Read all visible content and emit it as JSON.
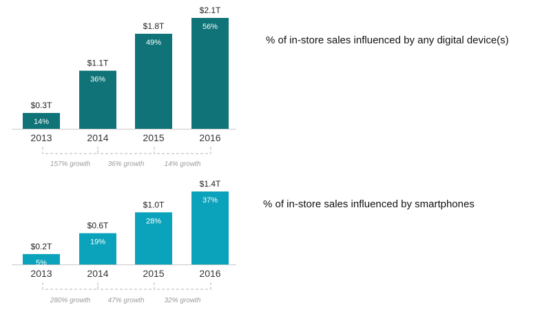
{
  "chart_data": [
    {
      "type": "bar",
      "title": "% of in-store sales influenced by any digital device(s)",
      "categories": [
        "2013",
        "2014",
        "2015",
        "2016"
      ],
      "values": [
        0.3,
        1.1,
        1.8,
        2.1
      ],
      "value_labels": [
        "$0.3T",
        "$1.1T",
        "$1.8T",
        "$2.1T"
      ],
      "percent_labels": [
        "14%",
        "36%",
        "49%",
        "56%"
      ],
      "growth_labels": [
        "157% growth",
        "36% growth",
        "14% growth"
      ],
      "unit": "$ trillions",
      "ylim": [
        0,
        2.1
      ],
      "color": "#0f7377",
      "grid": false,
      "legend": "none"
    },
    {
      "type": "bar",
      "title": "% of in-store sales influenced by smartphones",
      "categories": [
        "2013",
        "2014",
        "2015",
        "2016"
      ],
      "values": [
        0.2,
        0.6,
        1.0,
        1.4
      ],
      "value_labels": [
        "$0.2T",
        "$0.6T",
        "$1.0T",
        "$1.4T"
      ],
      "percent_labels": [
        "5%",
        "19%",
        "28%",
        "37%"
      ],
      "growth_labels": [
        "280% growth",
        "47% growth",
        "32% growth"
      ],
      "unit": "$ trillions",
      "ylim": [
        0,
        1.4
      ],
      "color": "#0ba3bb",
      "grid": false,
      "legend": "none"
    }
  ]
}
